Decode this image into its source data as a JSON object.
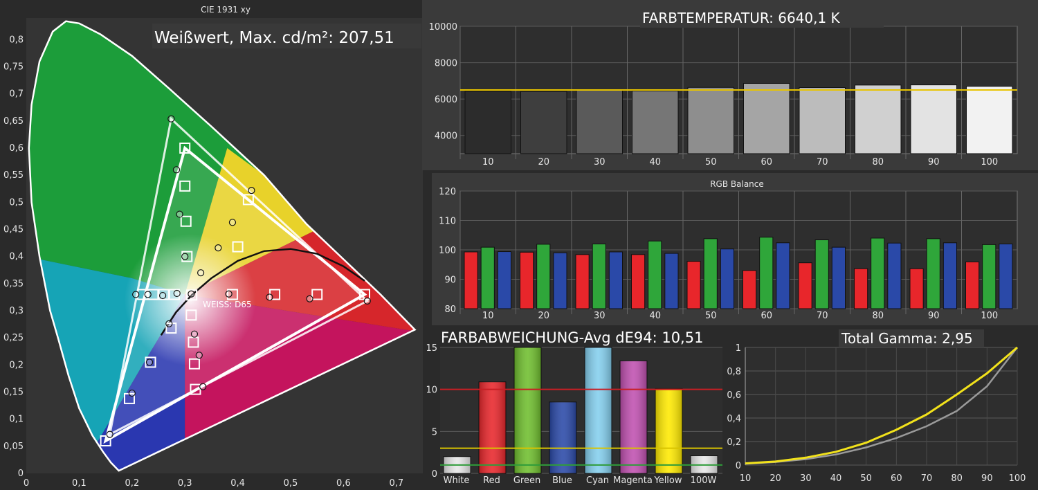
{
  "colors": {
    "background": "#2a2a2a",
    "panel": "#333333",
    "grid": "#5a5a5a",
    "text": "#ffffff",
    "tick": "#e6e6e6",
    "reference_yellow": "#e8c400",
    "red": "#e8262b",
    "green": "#2fa63a",
    "blue": "#2a49a8",
    "gamma_measured": "#f2e21b",
    "gamma_reference": "#9a9a9a"
  },
  "chart_data": [
    {
      "id": "cie",
      "type": "scatter",
      "title": "CIE 1931 xy",
      "annotation": "Weißwert, Max. cd/m²: 207,51",
      "xlim": [
        0,
        0.75
      ],
      "ylim": [
        0,
        0.84
      ],
      "x_ticks": [
        "0",
        "0,1",
        "0,2",
        "0,3",
        "0,4",
        "0,5",
        "0,6",
        "0,7"
      ],
      "y_ticks": [
        "0",
        "0,05",
        "0,1",
        "0,15",
        "0,2",
        "0,25",
        "0,3",
        "0,35",
        "0,4",
        "0,45",
        "0,5",
        "0,55",
        "0,6",
        "0,65",
        "0,7",
        "0,75",
        "0,8"
      ],
      "white_point_label": "WEISS: D65",
      "reference_gamut": [
        [
          0.64,
          0.33
        ],
        [
          0.3,
          0.6
        ],
        [
          0.15,
          0.06
        ]
      ],
      "measured_gamut": [
        [
          0.645,
          0.318
        ],
        [
          0.274,
          0.654
        ],
        [
          0.158,
          0.072
        ]
      ],
      "targets": [
        [
          0.64,
          0.33
        ],
        [
          0.3,
          0.6
        ],
        [
          0.15,
          0.06
        ],
        [
          0.3,
          0.53
        ],
        [
          0.302,
          0.465
        ],
        [
          0.42,
          0.505
        ],
        [
          0.4,
          0.418
        ],
        [
          0.304,
          0.4
        ],
        [
          0.55,
          0.33
        ],
        [
          0.47,
          0.33
        ],
        [
          0.39,
          0.33
        ],
        [
          0.313,
          0.329
        ],
        [
          0.22,
          0.33
        ],
        [
          0.24,
          0.33
        ],
        [
          0.26,
          0.33
        ],
        [
          0.28,
          0.33
        ],
        [
          0.195,
          0.138
        ],
        [
          0.235,
          0.205
        ],
        [
          0.274,
          0.268
        ],
        [
          0.312,
          0.292
        ],
        [
          0.316,
          0.242
        ],
        [
          0.318,
          0.202
        ],
        [
          0.32,
          0.155
        ]
      ],
      "measurements": [
        [
          0.645,
          0.318
        ],
        [
          0.274,
          0.654
        ],
        [
          0.158,
          0.072
        ],
        [
          0.284,
          0.56
        ],
        [
          0.29,
          0.478
        ],
        [
          0.426,
          0.522
        ],
        [
          0.39,
          0.463
        ],
        [
          0.363,
          0.416
        ],
        [
          0.3,
          0.4
        ],
        [
          0.33,
          0.37
        ],
        [
          0.536,
          0.322
        ],
        [
          0.46,
          0.325
        ],
        [
          0.383,
          0.331
        ],
        [
          0.312,
          0.331
        ],
        [
          0.207,
          0.33
        ],
        [
          0.23,
          0.33
        ],
        [
          0.258,
          0.328
        ],
        [
          0.285,
          0.332
        ],
        [
          0.2,
          0.148
        ],
        [
          0.233,
          0.205
        ],
        [
          0.27,
          0.276
        ],
        [
          0.318,
          0.257
        ],
        [
          0.327,
          0.218
        ],
        [
          0.334,
          0.16
        ]
      ],
      "blackbody_curve": [
        [
          0.255,
          0.255
        ],
        [
          0.283,
          0.297
        ],
        [
          0.313,
          0.329
        ],
        [
          0.35,
          0.36
        ],
        [
          0.4,
          0.392
        ],
        [
          0.45,
          0.41
        ],
        [
          0.5,
          0.414
        ],
        [
          0.55,
          0.405
        ],
        [
          0.6,
          0.382
        ],
        [
          0.64,
          0.355
        ]
      ]
    },
    {
      "id": "color_temperature",
      "type": "bar",
      "title": "FARBTEMPERATUR: 6640,1 K",
      "categories": [
        "10",
        "20",
        "30",
        "40",
        "50",
        "60",
        "70",
        "80",
        "90",
        "100"
      ],
      "values": [
        6430,
        6420,
        6480,
        6450,
        6640,
        6860,
        6630,
        6770,
        6780,
        6700
      ],
      "reference": 6500,
      "ylim": [
        3000,
        10000
      ],
      "y_ticks": [
        "4000",
        "6000",
        "8000",
        "10000"
      ]
    },
    {
      "id": "rgb_balance",
      "type": "bar",
      "title": "RGB Balance",
      "categories": [
        "10",
        "20",
        "30",
        "40",
        "50",
        "60",
        "70",
        "80",
        "90",
        "100"
      ],
      "series": [
        {
          "values": [
            99.3,
            99.2,
            98.4,
            98.4,
            96.1,
            93.0,
            95.6,
            93.6,
            93.6,
            95.9
          ]
        },
        {
          "values": [
            100.9,
            101.9,
            102.0,
            103.0,
            103.8,
            104.3,
            103.4,
            104.0,
            103.8,
            101.8
          ]
        },
        {
          "values": [
            99.4,
            99.0,
            99.3,
            98.8,
            100.3,
            102.4,
            100.9,
            102.3,
            102.4,
            102.0
          ]
        }
      ],
      "ylim": [
        80,
        120
      ],
      "y_ticks": [
        "80",
        "90",
        "100",
        "110",
        "120"
      ]
    },
    {
      "id": "color_deviation",
      "type": "bar",
      "title": "FARBABWEICHUNG-Avg dE94: 10,51",
      "categories": [
        "White",
        "Red",
        "Green",
        "Blue",
        "Cyan",
        "Magenta",
        "Yellow",
        "100W"
      ],
      "values": [
        2.0,
        10.9,
        15.2,
        8.5,
        15.0,
        13.4,
        10.1,
        2.1
      ],
      "bar_colors": [
        "#e8e8e8",
        "#e8262b",
        "#6fbe2e",
        "#2a49a8",
        "#84cfee",
        "#c050b0",
        "#ffea00",
        "#e8e8e8"
      ],
      "thresholds": [
        {
          "value": 10,
          "color": "#c81e24"
        },
        {
          "value": 3,
          "color": "#d9c400"
        },
        {
          "value": 1,
          "color": "#2f9c3a"
        }
      ],
      "ylim": [
        0,
        15
      ],
      "y_ticks": [
        "0",
        "5",
        "10",
        "15"
      ]
    },
    {
      "id": "gamma",
      "type": "line",
      "title": "Total Gamma: 2,95",
      "x": [
        10,
        20,
        30,
        40,
        50,
        60,
        70,
        80,
        90,
        100
      ],
      "series": [
        {
          "values": [
            0.011,
            0.026,
            0.05,
            0.09,
            0.15,
            0.23,
            0.33,
            0.46,
            0.67,
            1.0
          ]
        },
        {
          "values": [
            0.015,
            0.03,
            0.063,
            0.113,
            0.19,
            0.3,
            0.43,
            0.6,
            0.78,
            1.0
          ]
        }
      ],
      "xlim": [
        10,
        100
      ],
      "ylim": [
        0,
        1
      ],
      "x_ticks": [
        "10",
        "20",
        "30",
        "40",
        "50",
        "60",
        "70",
        "80",
        "90",
        "100"
      ],
      "y_ticks": [
        "0",
        "0,2",
        "0,4",
        "0,6",
        "0,8",
        "1"
      ]
    }
  ]
}
